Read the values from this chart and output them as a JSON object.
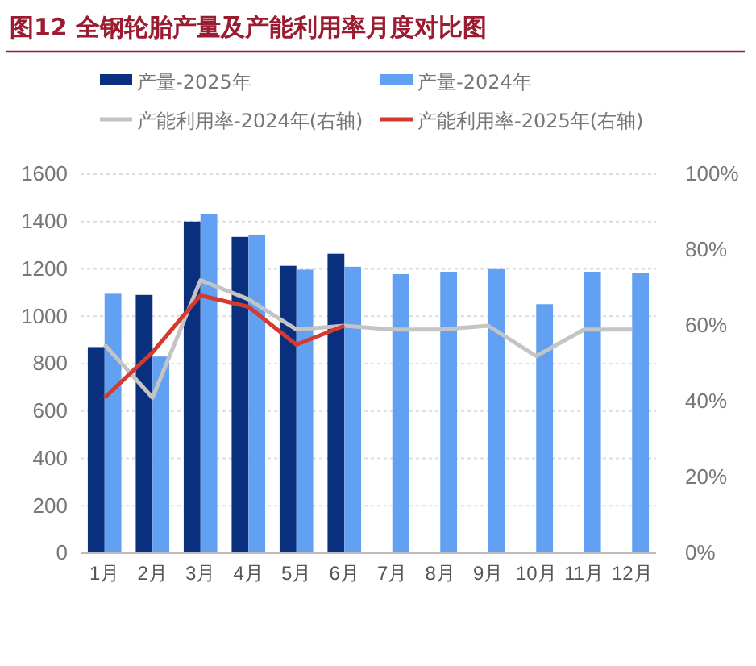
{
  "chart_data": {
    "type": "bar",
    "title": "图12    全钢轮胎产量及产能利用率月度对比图",
    "categories": [
      "1月",
      "2月",
      "3月",
      "4月",
      "5月",
      "6月",
      "7月",
      "8月",
      "9月",
      "10月",
      "11月",
      "12月"
    ],
    "series": [
      {
        "name": "产量-2025年",
        "color": "#0a2f7f",
        "values": [
          870,
          1090,
          1400,
          1335,
          1213,
          1264,
          null,
          null,
          null,
          null,
          null,
          null
        ]
      },
      {
        "name": "产量-2024年",
        "color": "#62a0f2",
        "values": [
          1095,
          830,
          1430,
          1345,
          1197,
          1209,
          1178,
          1188,
          1199,
          1051,
          1188,
          1183
        ]
      },
      {
        "name": "产能利用率-2024年(右轴)",
        "type": "line",
        "axis": "y2",
        "color": "#c4c4c4",
        "values": [
          55,
          41,
          72,
          67,
          59,
          60,
          59,
          59,
          60,
          52,
          59,
          59
        ]
      },
      {
        "name": "产能利用率-2025年(右轴)",
        "type": "line",
        "axis": "y2",
        "color": "#d43a2f",
        "values": [
          41,
          53,
          68,
          65,
          55,
          60,
          null,
          null,
          null,
          null,
          null,
          null
        ]
      }
    ],
    "ylim": [
      0,
      1600
    ],
    "yticks": [
      0,
      200,
      400,
      600,
      800,
      1000,
      1200,
      1400,
      1600
    ],
    "y2lim": [
      0,
      100
    ],
    "y2ticks": [
      {
        "value": 0,
        "label": "0%"
      },
      {
        "value": 20,
        "label": "20%"
      },
      {
        "value": 40,
        "label": "40%"
      },
      {
        "value": 60,
        "label": "60%"
      },
      {
        "value": 80,
        "label": "80%"
      },
      {
        "value": 100,
        "label": "100%"
      }
    ],
    "grid": "y",
    "legend": "top",
    "marker": "none",
    "line_style": "solid"
  }
}
